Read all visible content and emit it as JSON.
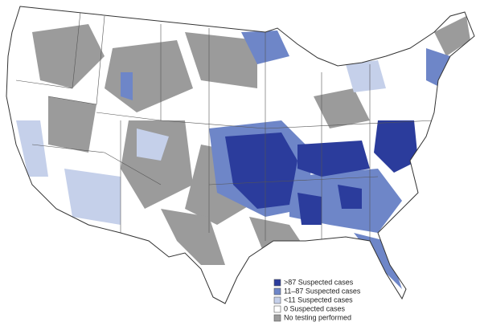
{
  "legend": {
    "items": [
      {
        "label": ">87 Suspected cases",
        "color": "#2b3c9c"
      },
      {
        "label": "11–87 Suspected cases",
        "color": "#6e86c8"
      },
      {
        "label": "<11 Suspected cases",
        "color": "#c5d0ea"
      },
      {
        "label": "0 Suspected cases",
        "color": "#ffffff"
      },
      {
        "label": "No testing performed",
        "color": "#9b9b9b"
      }
    ]
  }
}
